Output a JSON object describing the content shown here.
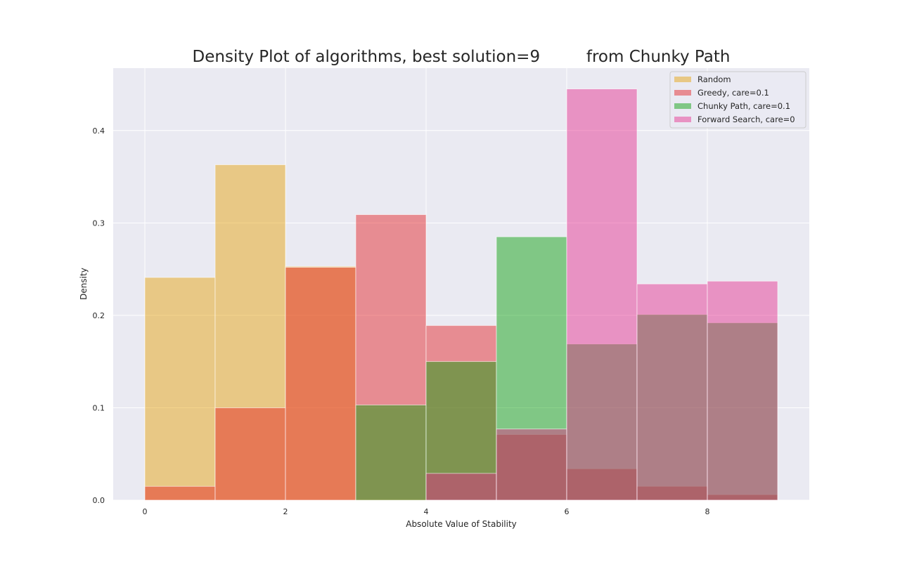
{
  "chart_data": {
    "type": "bar",
    "subtype": "overlaid-histogram",
    "title": "Density Plot of algorithms, best solution=9         from Chunky Path",
    "xlabel": "Absolute Value of Stability",
    "ylabel": "Density",
    "xlim": [
      -0.45,
      9.45
    ],
    "ylim": [
      0,
      0.4675
    ],
    "xticks": [
      0,
      2,
      4,
      6,
      8
    ],
    "yticks": [
      0.0,
      0.1,
      0.2,
      0.3,
      0.4
    ],
    "xtick_labels": [
      "0",
      "2",
      "4",
      "6",
      "8"
    ],
    "ytick_labels": [
      "0.0",
      "0.1",
      "0.2",
      "0.3",
      "0.4"
    ],
    "bin_edges": [
      0,
      1,
      2,
      3,
      4,
      5,
      6,
      7,
      8,
      9
    ],
    "grid": true,
    "background_color": "#EAEAF2",
    "legend_position": "top-right",
    "bar_alpha": 0.45,
    "series": [
      {
        "name": "Random",
        "color": "#E69F00",
        "values": [
          0.241,
          0.363,
          0.253,
          0.001,
          0.0,
          0.0,
          0.0,
          0.0,
          0.0
        ]
      },
      {
        "name": "Greedy, care=0.1",
        "color": "#E41A1C",
        "values": [
          0.015,
          0.1,
          0.252,
          0.309,
          0.189,
          0.071,
          0.034,
          0.015,
          0.006
        ]
      },
      {
        "name": "Chunky Path, care=0.1",
        "color": "#009E00",
        "values": [
          0.0,
          0.0,
          0.0,
          0.103,
          0.15,
          0.285,
          0.169,
          0.201,
          0.192
        ]
      },
      {
        "name": "Forward Search, care=0",
        "color": "#E7298A",
        "values": [
          0.0,
          0.0,
          0.0,
          0.0,
          0.029,
          0.077,
          0.445,
          0.234,
          0.237
        ]
      }
    ]
  }
}
